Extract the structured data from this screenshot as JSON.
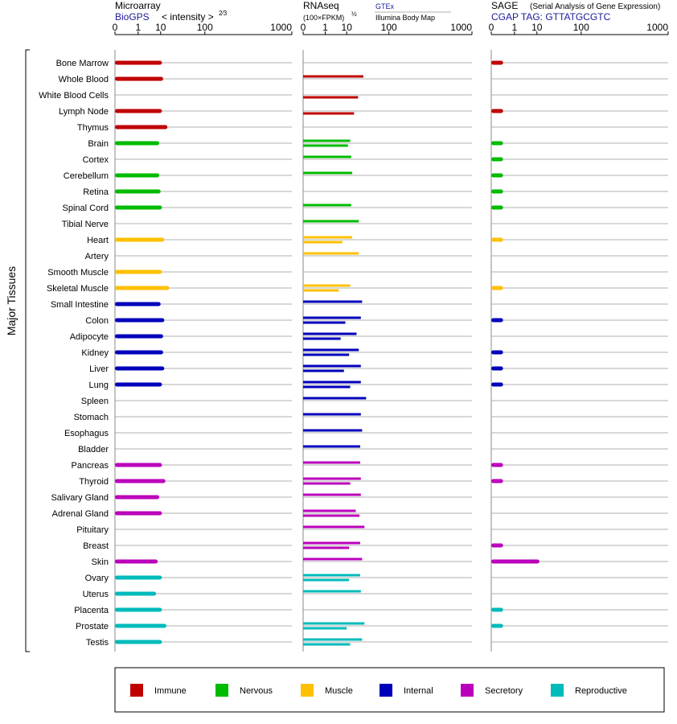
{
  "header": {
    "microarray": {
      "title": "Microarray",
      "source": "BioGPS",
      "unit": "< intensity >",
      "unit_exp": "2⁄3"
    },
    "rnaseq": {
      "title": "RNAseq",
      "unit": "(100×FPKM)",
      "unit_exp": "½",
      "source_a": "GTEx",
      "source_b": "Illumina Body Map"
    },
    "sage": {
      "title": "SAGE",
      "subtitle": "(Serial Analysis of Gene Expression)",
      "tag": "CGAP TAG: GTTATGCGTC"
    }
  },
  "ylabel": "Major Tissues",
  "colors": {
    "Immune": "#c00000",
    "Nervous": "#00bb00",
    "Muscle": "#ffc000",
    "Internal": "#0000bb",
    "Secretory": "#bb00bb",
    "Reproductive": "#00bbbb",
    "Skin": "#bb00bb"
  },
  "chart_data": {
    "type": "bar",
    "title": "",
    "xscale": "power-transformed (log-like)",
    "xticks": [
      "0",
      "1",
      "10",
      "100",
      "1000"
    ],
    "xlim": [
      0,
      1000
    ],
    "legend": {
      "position": "bottom",
      "entries": [
        {
          "label": "Immune",
          "color": "#c00000"
        },
        {
          "label": "Nervous",
          "color": "#00bb00"
        },
        {
          "label": "Muscle",
          "color": "#ffc000"
        },
        {
          "label": "Internal",
          "color": "#0000bb"
        },
        {
          "label": "Secretory",
          "color": "#bb00bb"
        },
        {
          "label": "Reproductive",
          "color": "#00bbbb"
        }
      ]
    },
    "tissues": [
      {
        "name": "Bone Marrow",
        "group": "Immune",
        "microarray": 11,
        "gtex": null,
        "ibm": null,
        "sage": 0.1
      },
      {
        "name": "Whole Blood",
        "group": "Immune",
        "microarray": 12,
        "gtex": 30,
        "ibm": null,
        "sage": null
      },
      {
        "name": "White Blood Cells",
        "group": "Immune",
        "microarray": null,
        "gtex": null,
        "ibm": 22,
        "sage": null
      },
      {
        "name": "Lymph Node",
        "group": "Immune",
        "microarray": 11,
        "gtex": null,
        "ibm": 17,
        "sage": 0.1
      },
      {
        "name": "Thymus",
        "group": "Immune",
        "microarray": 16,
        "gtex": null,
        "ibm": null,
        "sage": null
      },
      {
        "name": "Brain",
        "group": "Nervous",
        "microarray": 9,
        "gtex": 13,
        "ibm": 11,
        "sage": 0.1
      },
      {
        "name": "Cortex",
        "group": "Nervous",
        "microarray": null,
        "gtex": 14,
        "ibm": null,
        "sage": 0.1
      },
      {
        "name": "Cerebellum",
        "group": "Nervous",
        "microarray": 9,
        "gtex": 15,
        "ibm": null,
        "sage": 0.1
      },
      {
        "name": "Retina",
        "group": "Nervous",
        "microarray": 10,
        "gtex": null,
        "ibm": null,
        "sage": 0.1
      },
      {
        "name": "Spinal Cord",
        "group": "Nervous",
        "microarray": 11,
        "gtex": 14,
        "ibm": null,
        "sage": 0.1
      },
      {
        "name": "Tibial Nerve",
        "group": "Nervous",
        "microarray": null,
        "gtex": 23,
        "ibm": null,
        "sage": null
      },
      {
        "name": "Heart",
        "group": "Muscle",
        "microarray": 13,
        "gtex": 15,
        "ibm": 7,
        "sage": 0.1
      },
      {
        "name": "Artery",
        "group": "Muscle",
        "microarray": null,
        "gtex": 23,
        "ibm": null,
        "sage": null
      },
      {
        "name": "Smooth Muscle",
        "group": "Muscle",
        "microarray": 11,
        "gtex": null,
        "ibm": null,
        "sage": null
      },
      {
        "name": "Skeletal Muscle",
        "group": "Muscle",
        "microarray": 18,
        "gtex": 13,
        "ibm": 5,
        "sage": 0.1
      },
      {
        "name": "Small Intestine",
        "group": "Internal",
        "microarray": 10,
        "gtex": 28,
        "ibm": null,
        "sage": null
      },
      {
        "name": "Colon",
        "group": "Internal",
        "microarray": 13,
        "gtex": 26,
        "ibm": 9,
        "sage": 0.1
      },
      {
        "name": "Adipocyte",
        "group": "Internal",
        "microarray": 12,
        "gtex": 20,
        "ibm": 6,
        "sage": null
      },
      {
        "name": "Kidney",
        "group": "Internal",
        "microarray": 12,
        "gtex": 23,
        "ibm": 12,
        "sage": 0.1
      },
      {
        "name": "Liver",
        "group": "Internal",
        "microarray": 13,
        "gtex": 26,
        "ibm": 8,
        "sage": 0.1
      },
      {
        "name": "Lung",
        "group": "Internal",
        "microarray": 11,
        "gtex": 26,
        "ibm": 13,
        "sage": 0.1
      },
      {
        "name": "Spleen",
        "group": "Internal",
        "microarray": null,
        "gtex": 35,
        "ibm": null,
        "sage": null
      },
      {
        "name": "Stomach",
        "group": "Internal",
        "microarray": null,
        "gtex": 26,
        "ibm": null,
        "sage": null
      },
      {
        "name": "Esophagus",
        "group": "Internal",
        "microarray": null,
        "gtex": 28,
        "ibm": null,
        "sage": null
      },
      {
        "name": "Bladder",
        "group": "Internal",
        "microarray": null,
        "gtex": 25,
        "ibm": null,
        "sage": null
      },
      {
        "name": "Pancreas",
        "group": "Secretory",
        "microarray": 11,
        "gtex": 25,
        "ibm": null,
        "sage": 0.1
      },
      {
        "name": "Thyroid",
        "group": "Secretory",
        "microarray": 14,
        "gtex": 26,
        "ibm": 13,
        "sage": 0.1
      },
      {
        "name": "Salivary Gland",
        "group": "Secretory",
        "microarray": 9,
        "gtex": 26,
        "ibm": null,
        "sage": null
      },
      {
        "name": "Adrenal Gland",
        "group": "Secretory",
        "microarray": 11,
        "gtex": 19,
        "ibm": 24,
        "sage": null
      },
      {
        "name": "Pituitary",
        "group": "Secretory",
        "microarray": null,
        "gtex": 32,
        "ibm": null,
        "sage": null
      },
      {
        "name": "Breast",
        "group": "Secretory",
        "microarray": null,
        "gtex": 25,
        "ibm": 12,
        "sage": 0.1
      },
      {
        "name": "Skin",
        "group": "Skin",
        "microarray": 8,
        "gtex": 28,
        "ibm": null,
        "sage": 12
      },
      {
        "name": "Ovary",
        "group": "Reproductive",
        "microarray": 11,
        "gtex": 25,
        "ibm": 12,
        "sage": null
      },
      {
        "name": "Uterus",
        "group": "Reproductive",
        "microarray": 7,
        "gtex": 26,
        "ibm": null,
        "sage": null
      },
      {
        "name": "Placenta",
        "group": "Reproductive",
        "microarray": 11,
        "gtex": null,
        "ibm": null,
        "sage": 0.1
      },
      {
        "name": "Prostate",
        "group": "Reproductive",
        "microarray": 15,
        "gtex": 32,
        "ibm": 10,
        "sage": 0.1
      },
      {
        "name": "Testis",
        "group": "Reproductive",
        "microarray": 11,
        "gtex": 28,
        "ibm": 13,
        "sage": null
      }
    ]
  }
}
